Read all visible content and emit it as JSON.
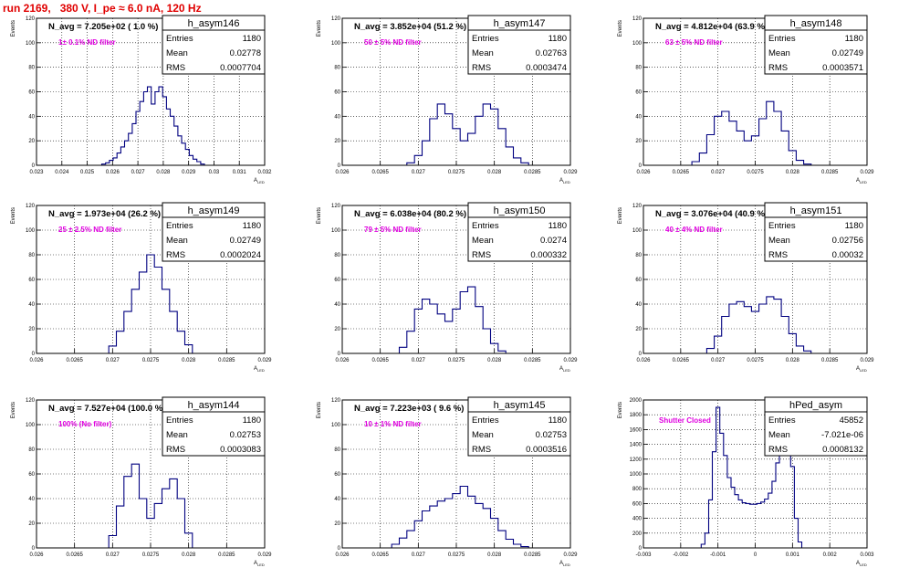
{
  "page": {
    "title": "run 2169,   380 V, I_pe ≈ 6.0 nA, 120 Hz",
    "y_axis_label": "Events",
    "x_axis_label": "A",
    "x_axis_sub": "LED",
    "stats_labels": {
      "entries": "Entries",
      "mean": "Mean",
      "rms": "RMS"
    },
    "colors": {
      "title": "#e00000",
      "hist_line": "#000080",
      "filter_text": "#e000e0",
      "grid": "#000000"
    }
  },
  "chart_data": [
    {
      "type": "bar",
      "name": "h_asym146",
      "navg": "N_avg = 7.205e+02 ( 1.0 %)",
      "filter": "1± 0.1% ND filter",
      "entries": "1180",
      "mean": "0.02778",
      "rms": "0.0007704",
      "xlim": [
        0.023,
        0.032
      ],
      "xticks": [
        0.023,
        0.024,
        0.025,
        0.026,
        0.027,
        0.028,
        0.029,
        0.03,
        0.031,
        0.032
      ],
      "xtick_labels": [
        "0.023",
        "0.024",
        "0.025",
        "0.026",
        "0.027",
        "0.028",
        "0.029",
        "0.03",
        "0.031",
        "0.032"
      ],
      "ylim": [
        0,
        120
      ],
      "yticks": [
        0,
        20,
        40,
        60,
        80,
        100,
        120
      ],
      "ytick_labels": [
        "0",
        "20",
        "40",
        "60",
        "80",
        "100",
        "120"
      ],
      "x": [
        0.0255,
        0.02565,
        0.0258,
        0.02595,
        0.0261,
        0.02625,
        0.0264,
        0.02655,
        0.0267,
        0.02685,
        0.027,
        0.02715,
        0.0273,
        0.02745,
        0.0276,
        0.02775,
        0.0279,
        0.02805,
        0.0282,
        0.02835,
        0.0285,
        0.02865,
        0.0288,
        0.02895,
        0.0291,
        0.02925,
        0.0294,
        0.02955,
        0.0297
      ],
      "values": [
        0,
        1,
        2,
        4,
        6,
        10,
        15,
        20,
        26,
        34,
        44,
        52,
        60,
        64,
        50,
        60,
        64,
        56,
        46,
        40,
        32,
        24,
        18,
        13,
        8,
        5,
        3,
        1,
        0
      ]
    },
    {
      "type": "bar",
      "name": "h_asym147",
      "navg": "N_avg = 3.852e+04 (51.2 %)",
      "filter": "50 ± 5% ND filter",
      "entries": "1180",
      "mean": "0.02763",
      "rms": "0.0003474",
      "xlim": [
        0.026,
        0.029
      ],
      "xticks": [
        0.026,
        0.0265,
        0.027,
        0.0275,
        0.028,
        0.0285,
        0.029
      ],
      "xtick_labels": [
        "0.026",
        "0.0265",
        "0.027",
        "0.0275",
        "0.028",
        "0.0285",
        "0.029"
      ],
      "ylim": [
        0,
        120
      ],
      "yticks": [
        0,
        20,
        40,
        60,
        80,
        100,
        120
      ],
      "ytick_labels": [
        "0",
        "20",
        "40",
        "60",
        "80",
        "100",
        "120"
      ],
      "x": [
        0.0268,
        0.0269,
        0.027,
        0.0271,
        0.0272,
        0.0273,
        0.0274,
        0.0275,
        0.0276,
        0.0277,
        0.0278,
        0.0279,
        0.028,
        0.0281,
        0.0282,
        0.0283,
        0.0284,
        0.0285
      ],
      "values": [
        0,
        2,
        8,
        20,
        38,
        50,
        42,
        30,
        20,
        26,
        40,
        50,
        46,
        30,
        15,
        6,
        2,
        0
      ]
    },
    {
      "type": "bar",
      "name": "h_asym148",
      "navg": "N_avg = 4.812e+04 (63.9 %)",
      "filter": "63 ± 5% ND filter",
      "entries": "1180",
      "mean": "0.02749",
      "rms": "0.0003571",
      "xlim": [
        0.026,
        0.029
      ],
      "xticks": [
        0.026,
        0.0265,
        0.027,
        0.0275,
        0.028,
        0.0285,
        0.029
      ],
      "xtick_labels": [
        "0.026",
        "0.0265",
        "0.027",
        "0.0275",
        "0.028",
        "0.0285",
        "0.029"
      ],
      "ylim": [
        0,
        120
      ],
      "yticks": [
        0,
        20,
        40,
        60,
        80,
        100,
        120
      ],
      "ytick_labels": [
        "0",
        "20",
        "40",
        "60",
        "80",
        "100",
        "120"
      ],
      "x": [
        0.0266,
        0.0267,
        0.0268,
        0.0269,
        0.027,
        0.0271,
        0.0272,
        0.0273,
        0.0274,
        0.0275,
        0.0276,
        0.0277,
        0.0278,
        0.0279,
        0.028,
        0.0281,
        0.0282,
        0.0283
      ],
      "values": [
        0,
        3,
        10,
        25,
        40,
        44,
        36,
        28,
        20,
        24,
        38,
        52,
        44,
        28,
        12,
        4,
        1,
        0
      ]
    },
    {
      "type": "bar",
      "name": "h_asym149",
      "navg": "N_avg = 1.973e+04 (26.2 %)",
      "filter": "25 ± 2.5% ND filter",
      "entries": "1180",
      "mean": "0.02749",
      "rms": "0.0002024",
      "xlim": [
        0.026,
        0.029
      ],
      "xticks": [
        0.026,
        0.0265,
        0.027,
        0.0275,
        0.028,
        0.0285,
        0.029
      ],
      "xtick_labels": [
        "0.026",
        "0.0265",
        "0.027",
        "0.0275",
        "0.028",
        "0.0285",
        "0.029"
      ],
      "ylim": [
        0,
        120
      ],
      "yticks": [
        0,
        20,
        40,
        60,
        80,
        100,
        120
      ],
      "ytick_labels": [
        "0",
        "20",
        "40",
        "60",
        "80",
        "100",
        "120"
      ],
      "x": [
        0.0269,
        0.027,
        0.0271,
        0.0272,
        0.0273,
        0.0274,
        0.0275,
        0.0276,
        0.0277,
        0.0278,
        0.0279,
        0.028,
        0.0281
      ],
      "values": [
        0,
        6,
        18,
        34,
        52,
        66,
        80,
        70,
        52,
        34,
        18,
        7,
        0
      ]
    },
    {
      "type": "bar",
      "name": "h_asym150",
      "navg": "N_avg = 6.038e+04 (80.2 %)",
      "filter": "79 ± 5% ND filter",
      "entries": "1180",
      "mean": "0.0274",
      "rms": "0.000332",
      "xlim": [
        0.026,
        0.029
      ],
      "xticks": [
        0.026,
        0.0265,
        0.027,
        0.0275,
        0.028,
        0.0285,
        0.029
      ],
      "xtick_labels": [
        "0.026",
        "0.0265",
        "0.027",
        "0.0275",
        "0.028",
        "0.0285",
        "0.029"
      ],
      "ylim": [
        0,
        120
      ],
      "yticks": [
        0,
        20,
        40,
        60,
        80,
        100,
        120
      ],
      "ytick_labels": [
        "0",
        "20",
        "40",
        "60",
        "80",
        "100",
        "120"
      ],
      "x": [
        0.0267,
        0.0268,
        0.0269,
        0.027,
        0.0271,
        0.0272,
        0.0273,
        0.0274,
        0.0275,
        0.0276,
        0.0277,
        0.0278,
        0.0279,
        0.028,
        0.0281,
        0.0282
      ],
      "values": [
        0,
        5,
        18,
        36,
        44,
        40,
        32,
        26,
        36,
        50,
        54,
        38,
        20,
        8,
        2,
        0
      ]
    },
    {
      "type": "bar",
      "name": "h_asym151",
      "navg": "N_avg = 3.076e+04 (40.9 %)",
      "filter": "40 ± 4% ND filter",
      "entries": "1180",
      "mean": "0.02756",
      "rms": "0.00032",
      "xlim": [
        0.026,
        0.029
      ],
      "xticks": [
        0.026,
        0.0265,
        0.027,
        0.0275,
        0.028,
        0.0285,
        0.029
      ],
      "xtick_labels": [
        "0.026",
        "0.0265",
        "0.027",
        "0.0275",
        "0.028",
        "0.0285",
        "0.029"
      ],
      "ylim": [
        0,
        120
      ],
      "yticks": [
        0,
        20,
        40,
        60,
        80,
        100,
        120
      ],
      "ytick_labels": [
        "0",
        "20",
        "40",
        "60",
        "80",
        "100",
        "120"
      ],
      "x": [
        0.0268,
        0.0269,
        0.027,
        0.0271,
        0.0272,
        0.0273,
        0.0274,
        0.0275,
        0.0276,
        0.0277,
        0.0278,
        0.0279,
        0.028,
        0.0281,
        0.0282,
        0.0283
      ],
      "values": [
        0,
        4,
        14,
        30,
        40,
        42,
        38,
        34,
        40,
        46,
        44,
        30,
        16,
        6,
        2,
        0
      ]
    },
    {
      "type": "bar",
      "name": "h_asym144",
      "navg": "N_avg = 7.527e+04 (100.0 %)",
      "filter": "100% (No filter)",
      "entries": "1180",
      "mean": "0.02753",
      "rms": "0.0003083",
      "xlim": [
        0.026,
        0.029
      ],
      "xticks": [
        0.026,
        0.0265,
        0.027,
        0.0275,
        0.028,
        0.0285,
        0.029
      ],
      "xtick_labels": [
        "0.026",
        "0.0265",
        "0.027",
        "0.0275",
        "0.028",
        "0.0285",
        "0.029"
      ],
      "ylim": [
        0,
        120
      ],
      "yticks": [
        0,
        20,
        40,
        60,
        80,
        100,
        120
      ],
      "ytick_labels": [
        "0",
        "20",
        "40",
        "60",
        "80",
        "100",
        "120"
      ],
      "x": [
        0.0269,
        0.027,
        0.0271,
        0.0272,
        0.0273,
        0.0274,
        0.0275,
        0.0276,
        0.0277,
        0.0278,
        0.0279,
        0.028,
        0.0281
      ],
      "values": [
        0,
        10,
        34,
        58,
        68,
        40,
        24,
        36,
        48,
        56,
        40,
        12,
        0
      ]
    },
    {
      "type": "bar",
      "name": "h_asym145",
      "navg": "N_avg = 7.223e+03 ( 9.6 %)",
      "filter": "10 ± 1% ND filter",
      "entries": "1180",
      "mean": "0.02753",
      "rms": "0.0003516",
      "xlim": [
        0.026,
        0.029
      ],
      "xticks": [
        0.026,
        0.0265,
        0.027,
        0.0275,
        0.028,
        0.0285,
        0.029
      ],
      "xtick_labels": [
        "0.026",
        "0.0265",
        "0.027",
        "0.0275",
        "0.028",
        "0.0285",
        "0.029"
      ],
      "ylim": [
        0,
        120
      ],
      "yticks": [
        0,
        20,
        40,
        60,
        80,
        100,
        120
      ],
      "ytick_labels": [
        "0",
        "20",
        "40",
        "60",
        "80",
        "100",
        "120"
      ],
      "x": [
        0.0266,
        0.0267,
        0.0268,
        0.0269,
        0.027,
        0.0271,
        0.0272,
        0.0273,
        0.0274,
        0.0275,
        0.0276,
        0.0277,
        0.0278,
        0.0279,
        0.028,
        0.0281,
        0.0282,
        0.0283,
        0.0284,
        0.0285
      ],
      "values": [
        0,
        3,
        8,
        14,
        22,
        30,
        34,
        38,
        40,
        44,
        50,
        42,
        36,
        32,
        24,
        14,
        7,
        3,
        1,
        0
      ]
    },
    {
      "type": "bar",
      "name": "hPed_asym",
      "navg": "",
      "filter": "Shutter Closed",
      "entries": "45852",
      "mean": "-7.021e-06",
      "rms": "0.0008132",
      "xlim": [
        -0.003,
        0.003
      ],
      "xticks": [
        -0.003,
        -0.002,
        -0.001,
        0,
        0.001,
        0.002,
        0.003
      ],
      "xtick_labels": [
        "-0.003",
        "-0.002",
        "-0.001",
        "0",
        "0.001",
        "0.002",
        "0.003"
      ],
      "ylim": [
        0,
        2000
      ],
      "yticks": [
        0,
        200,
        400,
        600,
        800,
        1000,
        1200,
        1400,
        1600,
        1800,
        2000
      ],
      "ytick_labels": [
        "0",
        "200",
        "400",
        "600",
        "800",
        "1000",
        "1200",
        "1400",
        "1600",
        "1800",
        "2000"
      ],
      "x": [
        -0.0015,
        -0.0014,
        -0.0013,
        -0.0012,
        -0.0011,
        -0.001,
        -0.0009,
        -0.0008,
        -0.0007,
        -0.0006,
        -0.0005,
        -0.0004,
        -0.0003,
        -0.0002,
        -0.0001,
        0.0,
        0.0001,
        0.0002,
        0.0003,
        0.0004,
        0.0005,
        0.0006,
        0.0007,
        0.0008,
        0.0009,
        0.001,
        0.0011,
        0.0012,
        0.0013
      ],
      "values": [
        0,
        50,
        200,
        650,
        1300,
        1900,
        1550,
        1250,
        950,
        820,
        720,
        650,
        610,
        600,
        590,
        590,
        600,
        620,
        660,
        740,
        900,
        1150,
        1500,
        1900,
        1800,
        1100,
        400,
        80,
        0
      ]
    }
  ]
}
